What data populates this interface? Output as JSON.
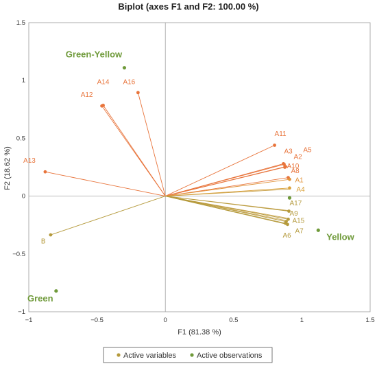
{
  "chart_data": {
    "type": "scatter",
    "title": "Biplot (axes F1 and F2: 100.00 %)",
    "xlabel": "F1 (81.38 %)",
    "ylabel": "F2 (18.62 %)",
    "xlim": [
      -1,
      1.5
    ],
    "ylim": [
      -1,
      1.5
    ],
    "xticks": [
      "−1",
      "−0.5",
      "0",
      "0.5",
      "1",
      "1.5"
    ],
    "yticks": [
      "−1",
      "−0.5",
      "0",
      "0.5",
      "1",
      "1.5"
    ],
    "xtick_values": [
      -1,
      -0.5,
      0,
      0.5,
      1,
      1.5
    ],
    "ytick_values": [
      -1,
      -0.5,
      0,
      0.5,
      1,
      1.5
    ],
    "legend": [
      {
        "name": "Active variables",
        "color": "#b59a3c"
      },
      {
        "name": "Active observations",
        "color": "#6f9a3a"
      }
    ],
    "legend_position": "bottom-center",
    "variables": [
      {
        "name": "A14",
        "x": -0.455,
        "y": 0.785,
        "color": "#e8743b",
        "lx": -0.5,
        "ly": 0.97
      },
      {
        "name": "A12",
        "x": -0.465,
        "y": 0.78,
        "color": "#e8743b",
        "lx": -0.62,
        "ly": 0.86
      },
      {
        "name": "A16",
        "x": -0.2,
        "y": 0.895,
        "color": "#e8743b",
        "lx": -0.31,
        "ly": 0.97
      },
      {
        "name": "A13",
        "x": -0.88,
        "y": 0.21,
        "color": "#e8743b",
        "lx": -1.04,
        "ly": 0.29
      },
      {
        "name": "A11",
        "x": 0.8,
        "y": 0.44,
        "color": "#e8743b",
        "lx": 0.8,
        "ly": 0.52
      },
      {
        "name": "A3",
        "x": 0.865,
        "y": 0.28,
        "color": "#e8743b",
        "lx": 0.87,
        "ly": 0.37
      },
      {
        "name": "A5",
        "x": 0.87,
        "y": 0.275,
        "color": "#e8743b",
        "lx": 1.01,
        "ly": 0.38
      },
      {
        "name": "A2",
        "x": 0.875,
        "y": 0.25,
        "color": "#e8743b",
        "lx": 0.94,
        "ly": 0.32
      },
      {
        "name": "A10",
        "x": 0.88,
        "y": 0.255,
        "color": "#e8743b",
        "lx": 0.89,
        "ly": 0.24
      },
      {
        "name": "A8",
        "x": 0.9,
        "y": 0.16,
        "color": "#e8743b",
        "lx": 0.92,
        "ly": 0.2
      },
      {
        "name": "A1",
        "x": 0.91,
        "y": 0.145,
        "color": "#e0933a",
        "lx": 0.95,
        "ly": 0.12
      },
      {
        "name": "A4",
        "x": 0.91,
        "y": 0.07,
        "color": "#d9a13a",
        "lx": 0.96,
        "ly": 0.04
      },
      {
        "name": "A17",
        "x": 0.905,
        "y": -0.13,
        "color": "#b59a3c",
        "lx": 0.91,
        "ly": -0.08
      },
      {
        "name": "A9",
        "x": 0.9,
        "y": -0.2,
        "color": "#b59a3c",
        "lx": 0.91,
        "ly": -0.17
      },
      {
        "name": "A15",
        "x": 0.885,
        "y": -0.22,
        "color": "#b59a3c",
        "lx": 0.93,
        "ly": -0.23
      },
      {
        "name": "A7",
        "x": 0.88,
        "y": -0.235,
        "color": "#b59a3c",
        "lx": 0.95,
        "ly": -0.32
      },
      {
        "name": "A6",
        "x": 0.895,
        "y": -0.245,
        "color": "#b59a3c",
        "lx": 0.86,
        "ly": -0.36
      },
      {
        "name": "B",
        "x": -0.84,
        "y": -0.335,
        "color": "#b59a3c",
        "lx": -0.91,
        "ly": -0.41
      }
    ],
    "extra_vectors": [
      {
        "x": 0.91,
        "y": 0.06
      },
      {
        "x": 0.905,
        "y": -0.125
      },
      {
        "x": 0.89,
        "y": -0.19
      },
      {
        "x": 0.88,
        "y": -0.21
      }
    ],
    "observations": [
      {
        "name": "Green-Yellow",
        "x": -0.3,
        "y": 1.11,
        "color": "#6f9a3a",
        "lx": -0.73,
        "ly": 1.2
      },
      {
        "name": "Yellow",
        "x": 1.12,
        "y": -0.295,
        "color": "#6f9a3a",
        "lx": 1.18,
        "ly": -0.38
      },
      {
        "name": "Green",
        "x": -0.8,
        "y": -0.82,
        "color": "#6f9a3a",
        "lx": -1.01,
        "ly": -0.91
      },
      {
        "name": "",
        "x": 0.91,
        "y": -0.015,
        "color": "#6f9a3a"
      }
    ]
  }
}
